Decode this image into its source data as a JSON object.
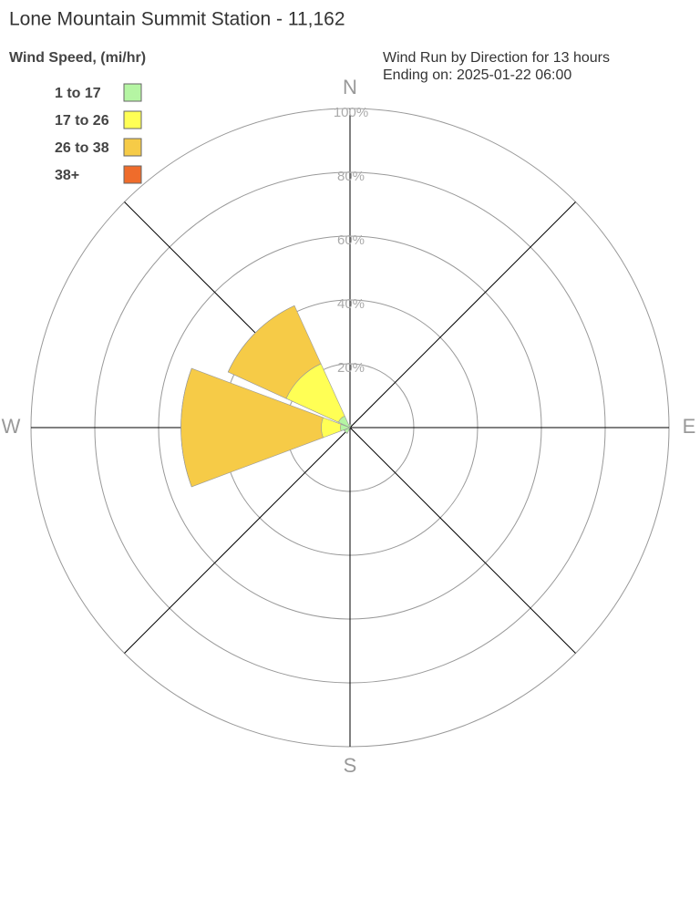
{
  "chart_data": {
    "type": "windrose",
    "title": "Lone Mountain Summit Station - 11,162",
    "legend_title": "Wind Speed, (mi/hr)",
    "subtitle": [
      "Wind Run by Direction for 13 hours",
      "Ending on: 2025-01-22 06:00"
    ],
    "categories": [
      "N",
      null,
      "E",
      null,
      "S",
      null,
      "W",
      null
    ],
    "series": [
      {
        "name": "1 to 17",
        "color": "#b5f5a3",
        "values": [
          1,
          0,
          0,
          0,
          0,
          2,
          3,
          4
        ]
      },
      {
        "name": "17 to 26",
        "color": "#ffff55",
        "values": [
          0,
          0,
          0,
          0,
          0,
          0,
          6,
          18
        ]
      },
      {
        "name": "26 to 38",
        "color": "#f6cb47",
        "values": [
          0,
          0,
          0,
          0,
          0,
          0,
          44,
          20
        ]
      },
      {
        "name": "38+",
        "color": "#ef6c2b",
        "values": [
          0,
          0,
          0,
          0,
          0,
          0,
          0,
          0
        ]
      }
    ],
    "rlim": [
      0,
      100
    ],
    "rticks": [
      {
        "value": 20,
        "label": "20%"
      },
      {
        "value": 40,
        "label": "40%"
      },
      {
        "value": 60,
        "label": "60%"
      },
      {
        "value": 80,
        "label": "80%"
      },
      {
        "value": 100,
        "label": "100%"
      }
    ],
    "grid": true
  }
}
